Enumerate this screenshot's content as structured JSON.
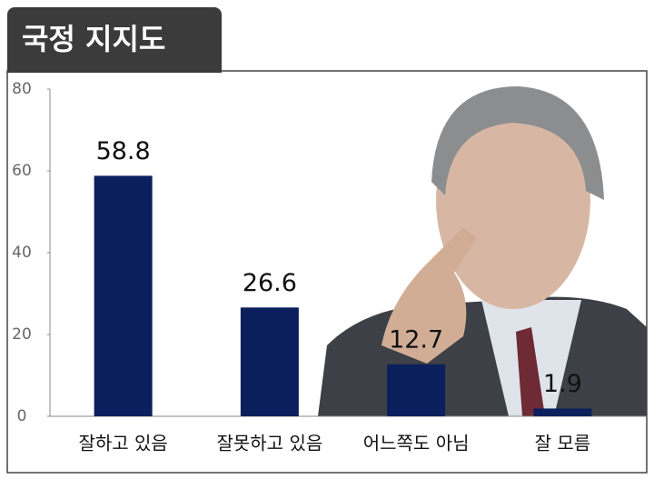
{
  "chart_data": {
    "type": "bar",
    "title": "국정 지지도",
    "categories": [
      "잘하고 있음",
      "잘못하고 있음",
      "어느쪽도 아님",
      "잘 모름"
    ],
    "values": [
      58.8,
      26.6,
      12.7,
      1.9
    ],
    "color": "#0b1f5c",
    "ylim": [
      0,
      80
    ],
    "yticks": [
      0,
      20,
      40,
      60,
      80
    ],
    "grid": false
  }
}
